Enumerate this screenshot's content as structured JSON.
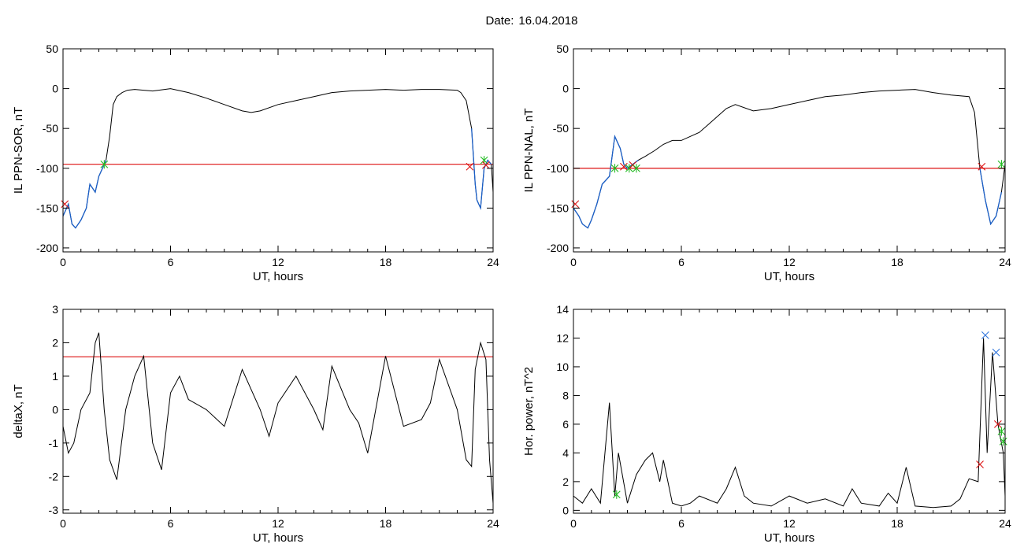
{
  "header": {
    "date_label": "Date:",
    "date_value": "16.04.2018"
  },
  "colors": {
    "trace": "#000000",
    "threshold": "#dd1111",
    "blue_segment": "#1a5fc8",
    "marker_red": "#dd1111",
    "marker_green": "#22bb22",
    "marker_blue": "#3377dd"
  },
  "chart_data": [
    {
      "type": "line",
      "ylabel": "IL PPN-SOR, nT",
      "xlabel": "UT, hours",
      "xlim": [
        0,
        24
      ],
      "ylim": [
        -205,
        50
      ],
      "xticks": [
        0,
        6,
        12,
        18,
        24
      ],
      "yticks": [
        -200,
        -150,
        -100,
        -50,
        0,
        50
      ],
      "threshold": -95,
      "series": [
        {
          "x": [
            0,
            0.3,
            0.5,
            0.7,
            1,
            1.3,
            1.5,
            1.8,
            2,
            2.2,
            2.4,
            2.6,
            2.8,
            3,
            3.3,
            3.6,
            4,
            5,
            6,
            7,
            8,
            9,
            10,
            10.5,
            11,
            12,
            13,
            14,
            15,
            16,
            17,
            18,
            19,
            20,
            21,
            22,
            22.2,
            22.5,
            22.8,
            23.0,
            23.1,
            23.3,
            23.5,
            23.7,
            23.9,
            24
          ],
          "y": [
            -160,
            -145,
            -170,
            -175,
            -165,
            -150,
            -120,
            -130,
            -110,
            -100,
            -90,
            -60,
            -20,
            -10,
            -5,
            -2,
            -1,
            -3,
            0,
            -5,
            -12,
            -20,
            -28,
            -30,
            -28,
            -20,
            -15,
            -10,
            -5,
            -3,
            -2,
            -1,
            -2,
            -1,
            -1,
            -2,
            -5,
            -15,
            -50,
            -120,
            -140,
            -150,
            -100,
            -90,
            -95,
            -130
          ]
        }
      ],
      "blue_segments": [
        [
          0,
          2.4
        ],
        [
          22.8,
          23.9
        ]
      ],
      "markers": [
        {
          "x": 0.1,
          "y": -145,
          "color": "red"
        },
        {
          "x": 2.3,
          "y": -95,
          "color": "green"
        },
        {
          "x": 22.7,
          "y": -98,
          "color": "red"
        },
        {
          "x": 23.5,
          "y": -90,
          "color": "green"
        },
        {
          "x": 23.6,
          "y": -96,
          "color": "red"
        }
      ]
    },
    {
      "type": "line",
      "ylabel": "IL PPN-NAL, nT",
      "xlabel": "UT, hours",
      "xlim": [
        0,
        24
      ],
      "ylim": [
        -205,
        50
      ],
      "xticks": [
        0,
        6,
        12,
        18,
        24
      ],
      "yticks": [
        -200,
        -150,
        -100,
        -50,
        0,
        50
      ],
      "threshold": -100,
      "series": [
        {
          "x": [
            0,
            0.3,
            0.5,
            0.8,
            1,
            1.3,
            1.6,
            2,
            2.3,
            2.6,
            2.8,
            3,
            3.3,
            3.6,
            4,
            4.5,
            5,
            5.5,
            6,
            6.5,
            7,
            7.5,
            8,
            8.5,
            9,
            10,
            11,
            12,
            13,
            14,
            15,
            16,
            17,
            18,
            19,
            20,
            21,
            22,
            22.3,
            22.6,
            22.9,
            23.2,
            23.5,
            23.8,
            24
          ],
          "y": [
            -150,
            -160,
            -170,
            -175,
            -165,
            -145,
            -120,
            -110,
            -60,
            -75,
            -95,
            -100,
            -95,
            -90,
            -85,
            -78,
            -70,
            -65,
            -65,
            -60,
            -55,
            -45,
            -35,
            -25,
            -20,
            -28,
            -25,
            -20,
            -15,
            -10,
            -8,
            -5,
            -3,
            -2,
            -1,
            -5,
            -8,
            -10,
            -30,
            -100,
            -140,
            -170,
            -160,
            -130,
            -95
          ]
        }
      ],
      "blue_segments": [
        [
          0,
          3.6
        ],
        [
          22.6,
          23.9
        ]
      ],
      "markers": [
        {
          "x": 0.1,
          "y": -145,
          "color": "red"
        },
        {
          "x": 2.3,
          "y": -100,
          "color": "green"
        },
        {
          "x": 2.8,
          "y": -98,
          "color": "red"
        },
        {
          "x": 3.1,
          "y": -100,
          "color": "green"
        },
        {
          "x": 3.3,
          "y": -96,
          "color": "red"
        },
        {
          "x": 3.5,
          "y": -100,
          "color": "green"
        },
        {
          "x": 22.7,
          "y": -98,
          "color": "red"
        },
        {
          "x": 23.8,
          "y": -95,
          "color": "green"
        }
      ]
    },
    {
      "type": "line",
      "ylabel": "deltaX, nT",
      "xlabel": "UT, hours",
      "xlim": [
        0,
        24
      ],
      "ylim": [
        -3.1,
        3
      ],
      "xticks": [
        0,
        6,
        12,
        18,
        24
      ],
      "yticks": [
        -3,
        -2,
        -1,
        0,
        1,
        2,
        3
      ],
      "threshold": 1.58,
      "series": [
        {
          "x": [
            0,
            0.3,
            0.6,
            1,
            1.5,
            1.8,
            2,
            2.3,
            2.6,
            3,
            3.5,
            4,
            4.5,
            5,
            5.5,
            6,
            6.5,
            7,
            8,
            9,
            10,
            11,
            11.5,
            12,
            13,
            14,
            14.5,
            15,
            16,
            16.5,
            17,
            18,
            19,
            20,
            20.5,
            21,
            22,
            22.5,
            22.8,
            23,
            23.3,
            23.6,
            23.8,
            24
          ],
          "y": [
            -0.5,
            -1.3,
            -1,
            0,
            0.5,
            2,
            2.3,
            0,
            -1.5,
            -2.1,
            0,
            1,
            1.6,
            -1,
            -1.8,
            0.5,
            1,
            0.3,
            0,
            -0.5,
            1.2,
            0,
            -0.8,
            0.2,
            1,
            0,
            -0.6,
            1.3,
            0,
            -0.4,
            -1.3,
            1.6,
            -0.5,
            -0.3,
            0.2,
            1.5,
            0,
            -1.5,
            -1.7,
            1.2,
            2,
            1.5,
            -1.5,
            -2.8
          ]
        }
      ],
      "blue_segments": [],
      "markers": []
    },
    {
      "type": "line",
      "ylabel": "Hor. power, nT^2",
      "xlabel": "UT, hours",
      "xlim": [
        0,
        24
      ],
      "ylim": [
        -0.2,
        14
      ],
      "xticks": [
        0,
        6,
        12,
        18,
        24
      ],
      "yticks": [
        0,
        2,
        4,
        6,
        8,
        10,
        12,
        14
      ],
      "threshold": null,
      "series": [
        {
          "x": [
            0,
            0.5,
            1,
            1.5,
            2,
            2.3,
            2.5,
            3,
            3.5,
            4,
            4.4,
            4.8,
            5,
            5.5,
            6,
            6.5,
            7,
            8,
            8.5,
            9,
            9.5,
            10,
            11,
            12,
            13,
            14,
            15,
            15.5,
            16,
            17,
            17.5,
            18,
            18.5,
            19,
            20,
            21,
            21.5,
            22,
            22.5,
            22.8,
            23,
            23.3,
            23.6,
            23.9,
            24
          ],
          "y": [
            1,
            0.5,
            1.5,
            0.5,
            7.5,
            1,
            4,
            0.5,
            2.5,
            3.5,
            4,
            2,
            3.5,
            0.5,
            0.3,
            0.5,
            1,
            0.5,
            1.5,
            3,
            1,
            0.5,
            0.3,
            1,
            0.5,
            0.8,
            0.3,
            1.5,
            0.5,
            0.3,
            1.2,
            0.5,
            3,
            0.3,
            0.2,
            0.3,
            0.8,
            2.2,
            2,
            12,
            4,
            11,
            6,
            4,
            1
          ]
        }
      ],
      "blue_segments": [],
      "markers": [
        {
          "x": 2.4,
          "y": 1.1,
          "color": "green"
        },
        {
          "x": 22.6,
          "y": 3.2,
          "color": "red"
        },
        {
          "x": 22.9,
          "y": 12.2,
          "color": "blue"
        },
        {
          "x": 23.5,
          "y": 11.0,
          "color": "blue"
        },
        {
          "x": 23.6,
          "y": 6.0,
          "color": "red"
        },
        {
          "x": 23.8,
          "y": 5.5,
          "color": "green"
        },
        {
          "x": 23.9,
          "y": 4.8,
          "color": "green"
        }
      ]
    }
  ]
}
